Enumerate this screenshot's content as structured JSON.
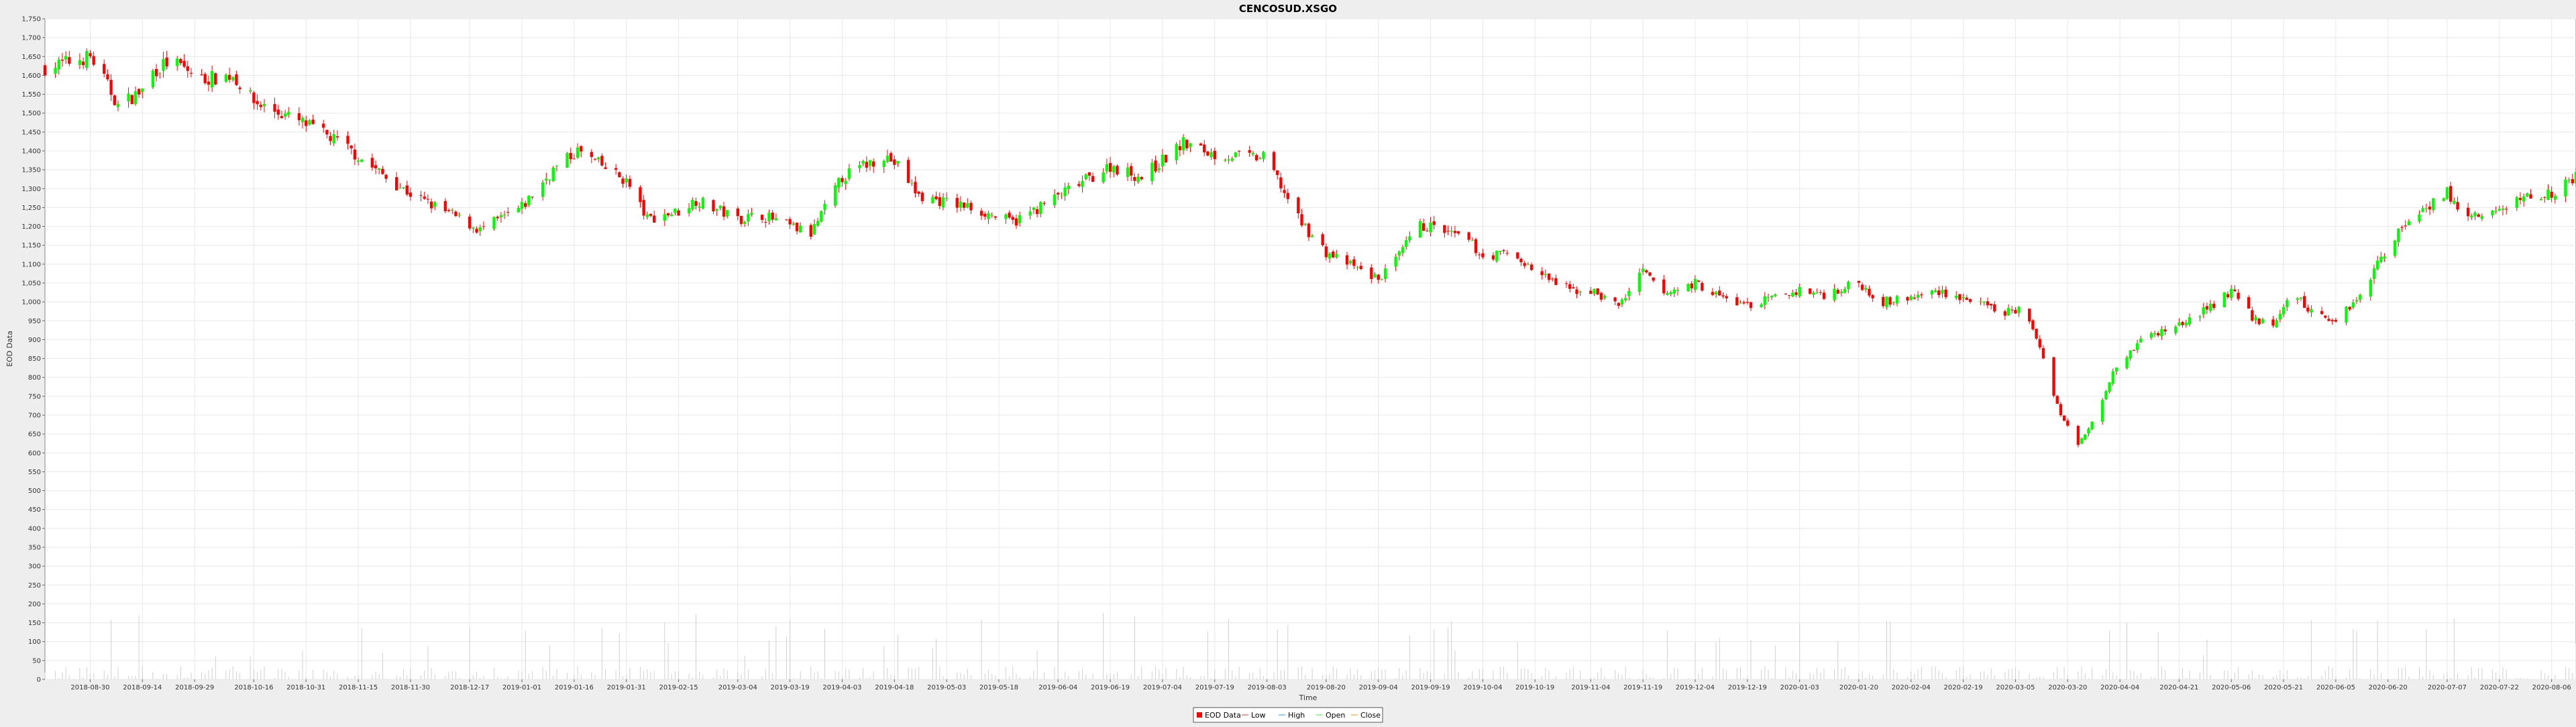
{
  "chart_data": {
    "type": "candlestick",
    "title": "CENCOSUD.XSGO",
    "xlabel": "Time",
    "ylabel": "EOD Data",
    "ylim": [
      0,
      1750
    ],
    "yticks": [
      0,
      50,
      100,
      150,
      200,
      250,
      300,
      350,
      400,
      450,
      500,
      550,
      600,
      650,
      700,
      750,
      800,
      850,
      900,
      950,
      1000,
      1050,
      1100,
      1150,
      1200,
      1250,
      1300,
      1350,
      1400,
      1450,
      1500,
      1550,
      1600,
      1650,
      1700,
      1750
    ],
    "ytick_labels": [
      "0",
      "50",
      "100",
      "150",
      "200",
      "250",
      "300",
      "350",
      "400",
      "450",
      "500",
      "550",
      "600",
      "650",
      "700",
      "750",
      "800",
      "850",
      "900",
      "950",
      "1,000",
      "1,050",
      "1,100",
      "1,150",
      "1,200",
      "1,250",
      "1,300",
      "1,350",
      "1,400",
      "1,450",
      "1,500",
      "1,550",
      "1,600",
      "1,650",
      "1,700",
      "1,750"
    ],
    "x_start": "2018-08-17",
    "x_end": "2020-08-13",
    "x_ticks": [
      "2018-08-30",
      "2018-09-14",
      "2018-09-29",
      "2018-10-16",
      "2018-10-31",
      "2018-11-15",
      "2018-11-30",
      "2018-12-17",
      "2019-01-01",
      "2019-01-16",
      "2019-01-31",
      "2019-02-15",
      "2019-03-04",
      "2019-03-19",
      "2019-04-03",
      "2019-04-18",
      "2019-05-03",
      "2019-05-18",
      "2019-06-04",
      "2019-06-19",
      "2019-07-04",
      "2019-07-19",
      "2019-08-03",
      "2019-08-20",
      "2019-09-04",
      "2019-09-19",
      "2019-10-04",
      "2019-10-19",
      "2019-11-04",
      "2019-11-19",
      "2019-12-04",
      "2019-12-19",
      "2020-01-03",
      "2020-01-20",
      "2020-02-04",
      "2020-02-19",
      "2020-03-05",
      "2020-03-20",
      "2020-04-04",
      "2020-04-21",
      "2020-05-06",
      "2020-05-21",
      "2020-06-05",
      "2020-06-20",
      "2020-07-07",
      "2020-07-22",
      "2020-08-06"
    ],
    "close_anchors": [
      [
        "2018-08-17",
        1620
      ],
      [
        "2018-08-30",
        1650
      ],
      [
        "2018-09-03",
        1590
      ],
      [
        "2018-09-07",
        1520
      ],
      [
        "2018-09-14",
        1560
      ],
      [
        "2018-09-17",
        1610
      ],
      [
        "2018-09-22",
        1640
      ],
      [
        "2018-10-01",
        1590
      ],
      [
        "2018-10-10",
        1600
      ],
      [
        "2018-10-16",
        1530
      ],
      [
        "2018-10-31",
        1470
      ],
      [
        "2018-11-10",
        1420
      ],
      [
        "2018-11-20",
        1350
      ],
      [
        "2018-12-01",
        1280
      ],
      [
        "2018-12-12",
        1230
      ],
      [
        "2018-12-20",
        1190
      ],
      [
        "2019-01-01",
        1250
      ],
      [
        "2019-01-10",
        1350
      ],
      [
        "2019-01-17",
        1400
      ],
      [
        "2019-01-31",
        1320
      ],
      [
        "2019-02-06",
        1220
      ],
      [
        "2019-02-15",
        1240
      ],
      [
        "2019-02-20",
        1270
      ],
      [
        "2019-03-04",
        1220
      ],
      [
        "2019-03-11",
        1230
      ],
      [
        "2019-03-19",
        1200
      ],
      [
        "2019-03-25",
        1180
      ],
      [
        "2019-04-03",
        1330
      ],
      [
        "2019-04-15",
        1390
      ],
      [
        "2019-04-19",
        1360
      ],
      [
        "2019-04-25",
        1280
      ],
      [
        "2019-05-10",
        1250
      ],
      [
        "2019-05-22",
        1210
      ],
      [
        "2019-06-04",
        1280
      ],
      [
        "2019-06-19",
        1360
      ],
      [
        "2019-06-28",
        1330
      ],
      [
        "2019-07-10",
        1420
      ],
      [
        "2019-07-19",
        1390
      ],
      [
        "2019-08-03",
        1380
      ],
      [
        "2019-08-08",
        1290
      ],
      [
        "2019-08-12",
        1220
      ],
      [
        "2019-08-20",
        1130
      ],
      [
        "2019-09-04",
        1060
      ],
      [
        "2019-09-10",
        1120
      ],
      [
        "2019-09-15",
        1200
      ],
      [
        "2019-09-19",
        1200
      ],
      [
        "2019-09-30",
        1160
      ],
      [
        "2019-10-04",
        1120
      ],
      [
        "2019-10-12",
        1130
      ],
      [
        "2019-10-19",
        1080
      ],
      [
        "2019-10-29",
        1030
      ],
      [
        "2019-11-04",
        1030
      ],
      [
        "2019-11-12",
        990
      ],
      [
        "2019-11-19",
        1080
      ],
      [
        "2019-11-25",
        1020
      ],
      [
        "2019-12-04",
        1050
      ],
      [
        "2019-12-12",
        1010
      ],
      [
        "2019-12-19",
        990
      ],
      [
        "2020-01-03",
        1030
      ],
      [
        "2020-01-10",
        1020
      ],
      [
        "2020-01-20",
        1050
      ],
      [
        "2020-01-27",
        1000
      ],
      [
        "2020-02-04",
        1010
      ],
      [
        "2020-02-12",
        1030
      ],
      [
        "2020-02-19",
        1010
      ],
      [
        "2020-03-01",
        970
      ],
      [
        "2020-03-06",
        980
      ],
      [
        "2020-03-11",
        910
      ],
      [
        "2020-03-14",
        820
      ],
      [
        "2020-03-18",
        700
      ],
      [
        "2020-03-23",
        620
      ],
      [
        "2020-03-28",
        700
      ],
      [
        "2020-04-02",
        820
      ],
      [
        "2020-04-10",
        900
      ],
      [
        "2020-04-21",
        940
      ],
      [
        "2020-04-29",
        980
      ],
      [
        "2020-05-06",
        1030
      ],
      [
        "2020-05-12",
        960
      ],
      [
        "2020-05-18",
        930
      ],
      [
        "2020-05-23",
        1030
      ],
      [
        "2020-05-28",
        980
      ],
      [
        "2020-06-05",
        950
      ],
      [
        "2020-06-12",
        1020
      ],
      [
        "2020-06-20",
        1150
      ],
      [
        "2020-06-27",
        1230
      ],
      [
        "2020-07-07",
        1290
      ],
      [
        "2020-07-12",
        1220
      ],
      [
        "2020-07-22",
        1240
      ],
      [
        "2020-07-29",
        1280
      ],
      [
        "2020-08-06",
        1290
      ],
      [
        "2020-08-13",
        1330
      ]
    ],
    "volume_range": [
      0,
      180
    ],
    "series_colors": {
      "up": "#00ff00",
      "down": "#ff0000",
      "wick": "#ff0000",
      "grid": "#e8e8e8",
      "background": "#ffffff"
    },
    "legend_position": "bottom-center",
    "legend": [
      "EOD Data",
      "Low",
      "High",
      "Open",
      "Close"
    ],
    "grid": true
  }
}
